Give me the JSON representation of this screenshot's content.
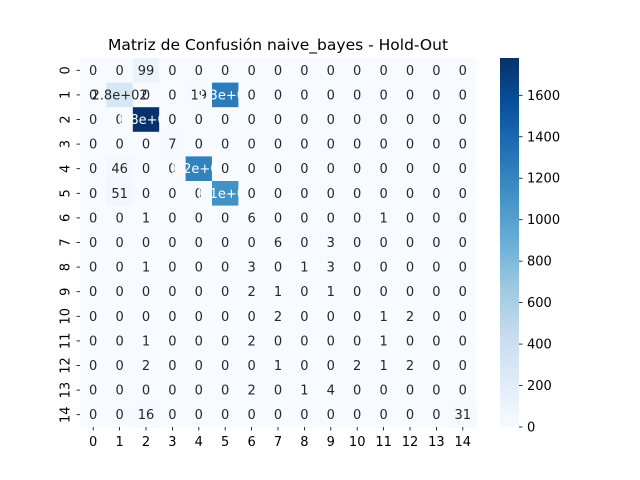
{
  "chart_data": {
    "type": "heatmap",
    "title": "Matriz de Confusión naive_bayes - Hold-Out",
    "xlabel": "",
    "ylabel": "",
    "x_categories": [
      "0",
      "1",
      "2",
      "3",
      "4",
      "5",
      "6",
      "7",
      "8",
      "9",
      "10",
      "11",
      "12",
      "13",
      "14"
    ],
    "y_categories": [
      "0",
      "1",
      "2",
      "3",
      "4",
      "5",
      "6",
      "7",
      "8",
      "9",
      "10",
      "11",
      "12",
      "13",
      "14"
    ],
    "matrix": [
      [
        0,
        0,
        99,
        0,
        0,
        0,
        0,
        0,
        0,
        0,
        0,
        0,
        0,
        0,
        0
      ],
      [
        0,
        280,
        0,
        0,
        19,
        1260,
        0,
        0,
        0,
        0,
        0,
        0,
        0,
        0,
        0
      ],
      [
        0,
        0,
        1780,
        0,
        0,
        0,
        0,
        0,
        0,
        0,
        0,
        0,
        0,
        0,
        0
      ],
      [
        0,
        0,
        0,
        7,
        0,
        0,
        0,
        0,
        0,
        0,
        0,
        0,
        0,
        0,
        0
      ],
      [
        0,
        46,
        0,
        0,
        1220,
        0,
        0,
        0,
        0,
        0,
        0,
        0,
        0,
        0,
        0
      ],
      [
        0,
        51,
        0,
        0,
        0,
        1110,
        0,
        0,
        0,
        0,
        0,
        0,
        0,
        0,
        0
      ],
      [
        0,
        0,
        1,
        0,
        0,
        0,
        6,
        0,
        0,
        0,
        0,
        1,
        0,
        0,
        0
      ],
      [
        0,
        0,
        0,
        0,
        0,
        0,
        0,
        6,
        0,
        3,
        0,
        0,
        0,
        0,
        0
      ],
      [
        0,
        0,
        1,
        0,
        0,
        0,
        3,
        0,
        1,
        3,
        0,
        0,
        0,
        0,
        0
      ],
      [
        0,
        0,
        0,
        0,
        0,
        0,
        2,
        1,
        0,
        1,
        0,
        0,
        0,
        0,
        0
      ],
      [
        0,
        0,
        0,
        0,
        0,
        0,
        0,
        2,
        0,
        0,
        0,
        1,
        2,
        0,
        0
      ],
      [
        0,
        0,
        1,
        0,
        0,
        0,
        2,
        0,
        0,
        0,
        0,
        1,
        0,
        0,
        0
      ],
      [
        0,
        0,
        2,
        0,
        0,
        0,
        0,
        1,
        0,
        0,
        2,
        1,
        2,
        0,
        0
      ],
      [
        0,
        0,
        0,
        0,
        0,
        0,
        2,
        0,
        1,
        4,
        0,
        0,
        0,
        0,
        0
      ],
      [
        0,
        0,
        16,
        0,
        0,
        0,
        0,
        0,
        0,
        0,
        0,
        0,
        0,
        0,
        31
      ]
    ],
    "cell_labels": [
      [
        "0",
        "0",
        "99",
        "0",
        "0",
        "0",
        "0",
        "0",
        "0",
        "0",
        "0",
        "0",
        "0",
        "0",
        "0"
      ],
      [
        "0",
        "2.8e+02",
        "0",
        "0",
        "19",
        "1.3e+03",
        "0",
        "0",
        "0",
        "0",
        "0",
        "0",
        "0",
        "0",
        "0"
      ],
      [
        "0",
        "0",
        "1.8e+03",
        "0",
        "0",
        "0",
        "0",
        "0",
        "0",
        "0",
        "0",
        "0",
        "0",
        "0",
        "0"
      ],
      [
        "0",
        "0",
        "0",
        "7",
        "0",
        "0",
        "0",
        "0",
        "0",
        "0",
        "0",
        "0",
        "0",
        "0",
        "0"
      ],
      [
        "0",
        "46",
        "0",
        "0",
        "1.2e+03",
        "0",
        "0",
        "0",
        "0",
        "0",
        "0",
        "0",
        "0",
        "0",
        "0"
      ],
      [
        "0",
        "51",
        "0",
        "0",
        "0",
        "1.1e+03",
        "0",
        "0",
        "0",
        "0",
        "0",
        "0",
        "0",
        "0",
        "0"
      ],
      [
        "0",
        "0",
        "1",
        "0",
        "0",
        "0",
        "6",
        "0",
        "0",
        "0",
        "0",
        "1",
        "0",
        "0",
        "0"
      ],
      [
        "0",
        "0",
        "0",
        "0",
        "0",
        "0",
        "0",
        "6",
        "0",
        "3",
        "0",
        "0",
        "0",
        "0",
        "0"
      ],
      [
        "0",
        "0",
        "1",
        "0",
        "0",
        "0",
        "3",
        "0",
        "1",
        "3",
        "0",
        "0",
        "0",
        "0",
        "0"
      ],
      [
        "0",
        "0",
        "0",
        "0",
        "0",
        "0",
        "2",
        "1",
        "0",
        "1",
        "0",
        "0",
        "0",
        "0",
        "0"
      ],
      [
        "0",
        "0",
        "0",
        "0",
        "0",
        "0",
        "0",
        "2",
        "0",
        "0",
        "0",
        "1",
        "2",
        "0",
        "0"
      ],
      [
        "0",
        "0",
        "1",
        "0",
        "0",
        "0",
        "2",
        "0",
        "0",
        "0",
        "0",
        "1",
        "0",
        "0",
        "0"
      ],
      [
        "0",
        "0",
        "2",
        "0",
        "0",
        "0",
        "0",
        "1",
        "0",
        "0",
        "2",
        "1",
        "2",
        "0",
        "0"
      ],
      [
        "0",
        "0",
        "0",
        "0",
        "0",
        "0",
        "2",
        "0",
        "1",
        "4",
        "0",
        "0",
        "0",
        "0",
        "0"
      ],
      [
        "0",
        "0",
        "16",
        "0",
        "0",
        "0",
        "0",
        "0",
        "0",
        "0",
        "0",
        "0",
        "0",
        "0",
        "31"
      ]
    ],
    "colormap": "Blues",
    "colormap_stops": [
      "#f7fbff",
      "#deebf7",
      "#c6dbef",
      "#9ecae1",
      "#6baed6",
      "#4292c6",
      "#2171b5",
      "#08519c",
      "#08306b"
    ],
    "vmin": 0,
    "vmax": 1780,
    "colorbar_ticks": [
      0,
      200,
      400,
      600,
      800,
      1000,
      1200,
      1400,
      1600
    ],
    "grid": false
  }
}
